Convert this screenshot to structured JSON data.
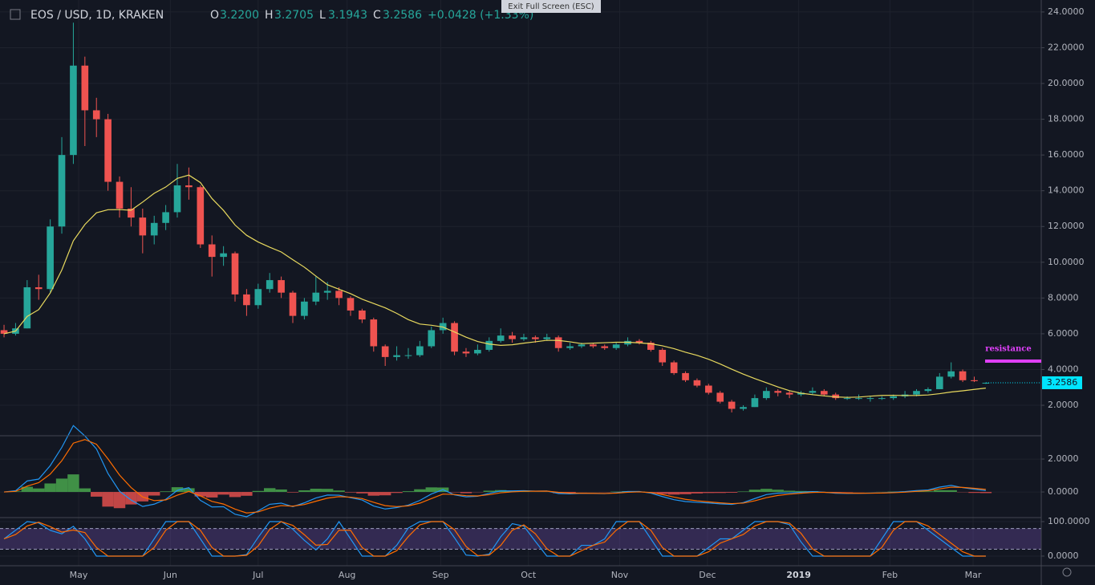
{
  "chart_data": {
    "type": "candlestick",
    "header": {
      "symbol": "EOS / USD, 1D, KRAKEN",
      "o": "O",
      "open": "3.2200",
      "h": "H",
      "high": "3.2705",
      "l": "L",
      "low": "3.1943",
      "c": "C",
      "close": "3.2586",
      "change": "+0.0428 (+1.33%)"
    },
    "button": "Exit Full Screen (ESC)",
    "ohlc": [
      [
        6.2,
        6.5,
        5.8,
        6.0
      ],
      [
        6.0,
        6.6,
        5.9,
        6.3
      ],
      [
        6.3,
        9.0,
        6.3,
        8.6
      ],
      [
        8.6,
        9.3,
        7.9,
        8.5
      ],
      [
        8.5,
        12.4,
        8.3,
        12.0
      ],
      [
        12.0,
        17.0,
        11.6,
        16.0
      ],
      [
        16.0,
        23.4,
        15.5,
        21.0
      ],
      [
        21.0,
        21.5,
        16.5,
        18.5
      ],
      [
        18.5,
        19.2,
        17.0,
        18.0
      ],
      [
        18.0,
        18.3,
        14.0,
        14.5
      ],
      [
        14.5,
        14.8,
        12.5,
        13.0
      ],
      [
        13.0,
        14.2,
        12.0,
        12.5
      ],
      [
        12.5,
        13.0,
        10.5,
        11.5
      ],
      [
        11.5,
        12.6,
        11.0,
        12.2
      ],
      [
        12.2,
        13.2,
        11.8,
        12.8
      ],
      [
        12.8,
        15.5,
        12.5,
        14.3
      ],
      [
        14.3,
        15.3,
        13.5,
        14.2
      ],
      [
        14.2,
        14.3,
        10.8,
        11.0
      ],
      [
        11.0,
        11.5,
        9.2,
        10.3
      ],
      [
        10.3,
        10.9,
        9.8,
        10.5
      ],
      [
        10.5,
        10.6,
        7.8,
        8.2
      ],
      [
        8.2,
        8.5,
        7.0,
        7.6
      ],
      [
        7.6,
        8.8,
        7.4,
        8.5
      ],
      [
        8.5,
        9.4,
        8.3,
        9.0
      ],
      [
        9.0,
        9.2,
        8.0,
        8.3
      ],
      [
        8.3,
        8.4,
        6.6,
        7.0
      ],
      [
        7.0,
        8.0,
        6.8,
        7.8
      ],
      [
        7.8,
        9.2,
        7.6,
        8.3
      ],
      [
        8.3,
        8.9,
        7.9,
        8.4
      ],
      [
        8.4,
        8.6,
        7.6,
        8.0
      ],
      [
        8.0,
        8.1,
        7.0,
        7.3
      ],
      [
        7.3,
        7.4,
        6.6,
        6.8
      ],
      [
        6.8,
        6.9,
        5.0,
        5.3
      ],
      [
        5.3,
        5.4,
        4.2,
        4.7
      ],
      [
        4.7,
        5.3,
        4.5,
        4.8
      ],
      [
        4.8,
        5.2,
        4.6,
        4.8
      ],
      [
        4.8,
        5.6,
        4.7,
        5.3
      ],
      [
        5.3,
        6.4,
        5.2,
        6.2
      ],
      [
        6.2,
        6.9,
        6.0,
        6.6
      ],
      [
        6.6,
        6.7,
        4.8,
        5.0
      ],
      [
        5.0,
        5.2,
        4.7,
        4.9
      ],
      [
        4.9,
        5.4,
        4.8,
        5.1
      ],
      [
        5.1,
        5.8,
        5.0,
        5.6
      ],
      [
        5.6,
        6.3,
        5.5,
        5.9
      ],
      [
        5.9,
        6.1,
        5.5,
        5.7
      ],
      [
        5.7,
        6.0,
        5.6,
        5.8
      ],
      [
        5.8,
        5.9,
        5.5,
        5.7
      ],
      [
        5.7,
        6.0,
        5.6,
        5.8
      ],
      [
        5.8,
        5.9,
        5.0,
        5.2
      ],
      [
        5.2,
        5.5,
        5.1,
        5.3
      ],
      [
        5.3,
        5.5,
        5.2,
        5.4
      ],
      [
        5.4,
        5.5,
        5.2,
        5.3
      ],
      [
        5.3,
        5.4,
        5.1,
        5.2
      ],
      [
        5.2,
        5.5,
        5.1,
        5.4
      ],
      [
        5.4,
        5.8,
        5.3,
        5.6
      ],
      [
        5.6,
        5.7,
        5.4,
        5.5
      ],
      [
        5.5,
        5.6,
        5.0,
        5.1
      ],
      [
        5.1,
        5.2,
        4.2,
        4.4
      ],
      [
        4.4,
        4.5,
        3.7,
        3.8
      ],
      [
        3.8,
        3.9,
        3.3,
        3.4
      ],
      [
        3.4,
        3.5,
        3.0,
        3.1
      ],
      [
        3.1,
        3.2,
        2.6,
        2.7
      ],
      [
        2.7,
        2.8,
        2.1,
        2.2
      ],
      [
        2.2,
        2.3,
        1.6,
        1.8
      ],
      [
        1.8,
        2.0,
        1.7,
        1.9
      ],
      [
        1.9,
        2.6,
        1.9,
        2.4
      ],
      [
        2.4,
        3.0,
        2.3,
        2.8
      ],
      [
        2.8,
        2.9,
        2.5,
        2.7
      ],
      [
        2.7,
        2.8,
        2.4,
        2.6
      ],
      [
        2.6,
        2.8,
        2.5,
        2.7
      ],
      [
        2.7,
        3.0,
        2.6,
        2.8
      ],
      [
        2.8,
        2.9,
        2.5,
        2.6
      ],
      [
        2.6,
        2.7,
        2.3,
        2.4
      ],
      [
        2.4,
        2.5,
        2.3,
        2.4
      ],
      [
        2.4,
        2.6,
        2.3,
        2.4
      ],
      [
        2.4,
        2.5,
        2.2,
        2.4
      ],
      [
        2.4,
        2.5,
        2.3,
        2.4
      ],
      [
        2.4,
        2.6,
        2.3,
        2.5
      ],
      [
        2.5,
        2.8,
        2.4,
        2.6
      ],
      [
        2.6,
        2.9,
        2.5,
        2.8
      ],
      [
        2.8,
        3.0,
        2.7,
        2.9
      ],
      [
        2.9,
        3.8,
        2.9,
        3.6
      ],
      [
        3.6,
        4.4,
        3.5,
        3.9
      ],
      [
        3.9,
        4.0,
        3.3,
        3.4
      ],
      [
        3.4,
        3.6,
        3.3,
        3.35
      ],
      [
        3.22,
        3.2705,
        3.1943,
        3.2586
      ]
    ],
    "up_color": "#26a69a",
    "down_color": "#ef5350",
    "xlim": [
      -0.35,
      89.8
    ],
    "xticks": [
      {
        "value": 6.46,
        "label": "May"
      },
      {
        "value": 14.4,
        "label": "Jun"
      },
      {
        "value": 22.0,
        "label": "Jul"
      },
      {
        "value": 29.7,
        "label": "Aug"
      },
      {
        "value": 37.8,
        "label": "Sep"
      },
      {
        "value": 45.4,
        "label": "Oct"
      },
      {
        "value": 53.3,
        "label": "Nov"
      },
      {
        "value": 60.9,
        "label": "Dec"
      },
      {
        "value": 68.8,
        "label": "2019"
      },
      {
        "value": 76.7,
        "label": "Feb"
      },
      {
        "value": 83.9,
        "label": "Mar"
      }
    ],
    "ylim": [
      0.34,
      24.67
    ],
    "yticks": [
      {
        "value": 2,
        "label": "2.0000"
      },
      {
        "value": 4,
        "label": "4.0000"
      },
      {
        "value": 6,
        "label": "6.0000"
      },
      {
        "value": 8,
        "label": "8.0000"
      },
      {
        "value": 10,
        "label": "10.0000"
      },
      {
        "value": 12,
        "label": "12.0000"
      },
      {
        "value": 14,
        "label": "14.0000"
      },
      {
        "value": 16,
        "label": "16.0000"
      },
      {
        "value": 18,
        "label": "18.0000"
      },
      {
        "value": 20,
        "label": "20.0000"
      },
      {
        "value": 22,
        "label": "22.0000"
      },
      {
        "value": 24,
        "label": "24.0000"
      }
    ],
    "grid": true,
    "annotation": {
      "text": "resistance",
      "value": 4.47,
      "color": "#e040fb"
    },
    "macd": {
      "ylim": [
        -1.46,
        3.32
      ],
      "yticks": [
        {
          "value": 0,
          "label": "0.0000"
        },
        {
          "value": 2,
          "label": "2.0000"
        }
      ]
    },
    "stoch_rsi": {
      "ylim": [
        -28,
        107
      ],
      "yticks": [
        {
          "value": 0,
          "label": "0.0000"
        },
        {
          "value": 100,
          "label": "100.0000"
        }
      ],
      "bands": [
        20,
        80
      ]
    }
  }
}
